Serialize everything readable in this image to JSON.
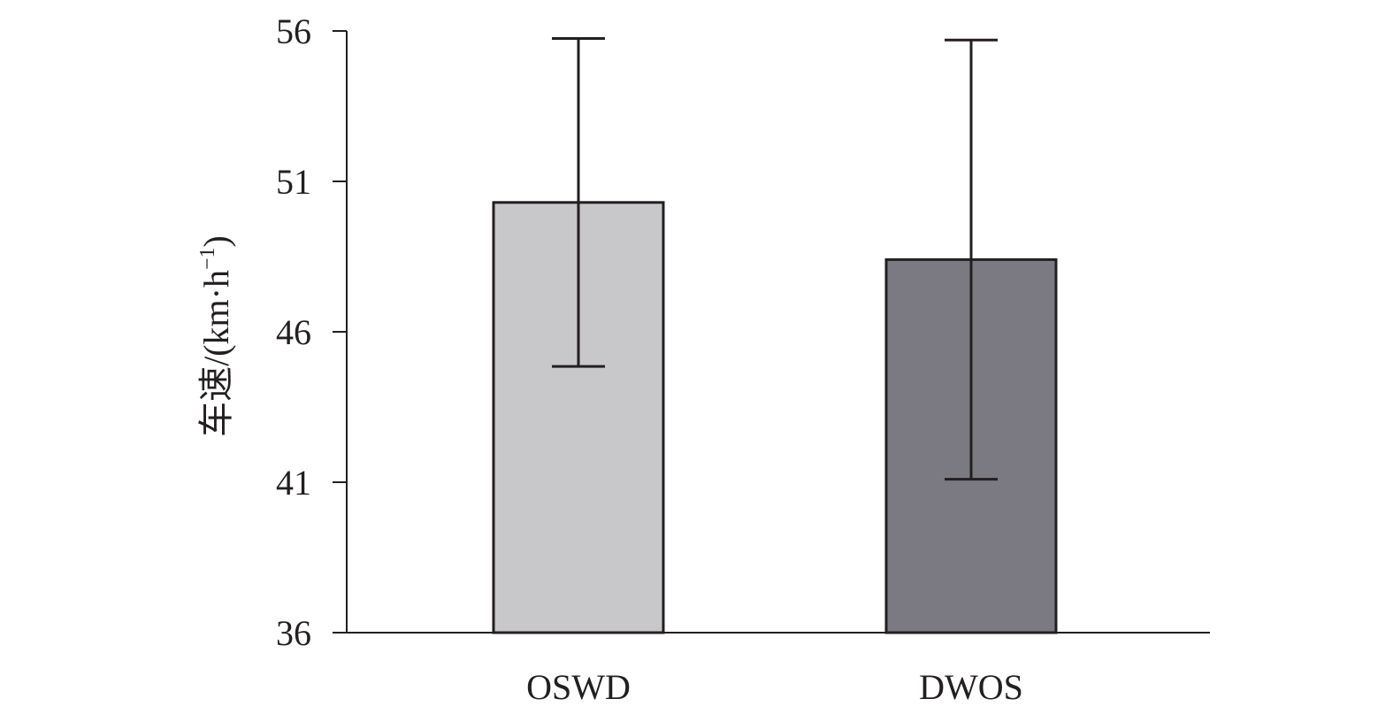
{
  "chart_data": {
    "type": "bar",
    "title": "",
    "xlabel": "",
    "ylabel": "车速/(km·h⁻¹)",
    "ylabel_main": "车速/(km·h",
    "ylabel_sup": "−1",
    "ylabel_close": ")",
    "ylim": [
      36,
      56
    ],
    "yticks": [
      36,
      41,
      46,
      51,
      56
    ],
    "ytick_labels": [
      "36",
      "41",
      "46",
      "51",
      "56"
    ],
    "categories": [
      "OSWD",
      "DWOS"
    ],
    "values": [
      50.3,
      48.4
    ],
    "error": [
      5.45,
      7.3
    ],
    "colors": [
      "#c8c7ca",
      "#7b7a83"
    ],
    "grid": false,
    "legend": "none"
  }
}
